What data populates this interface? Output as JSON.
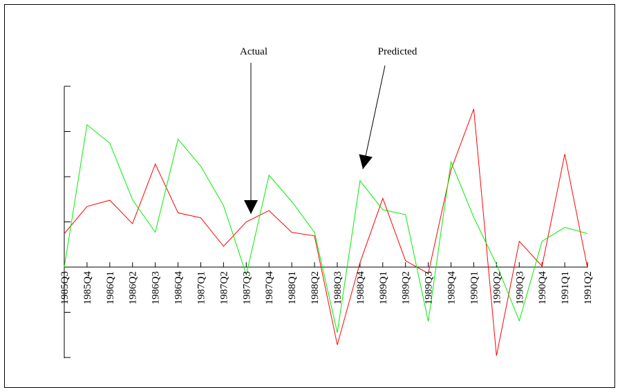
{
  "chart_data": {
    "type": "line",
    "title": "",
    "xlabel": "",
    "ylabel": "",
    "categories": [
      "1985Q3",
      "1985Q4",
      "1986Q1",
      "1986Q2",
      "1986Q3",
      "1986Q4",
      "1987Q1",
      "1987Q2",
      "1987Q3",
      "1987Q4",
      "1988Q1",
      "1988Q2",
      "1988Q3",
      "1988Q4",
      "1989Q1",
      "1989Q2",
      "1989Q3",
      "1989Q4",
      "1990Q1",
      "1990Q2",
      "1990Q3",
      "1990Q4",
      "1991Q1",
      "1991Q2"
    ],
    "ylim": [
      -2,
      4
    ],
    "yticks": [
      -2,
      -1,
      0,
      1,
      2,
      3,
      4
    ],
    "grid": false,
    "series": [
      {
        "key": "actual",
        "color": "#ff0000",
        "values": [
          0.74,
          1.34,
          1.48,
          0.96,
          2.28,
          1.2,
          1.09,
          0.46,
          1.0,
          1.25,
          0.77,
          0.69,
          -1.72,
          0.1,
          1.52,
          0.14,
          -0.14,
          2.15,
          3.5,
          -1.96,
          0.57,
          0.02,
          2.5,
          -0.02
        ]
      },
      {
        "key": "predicted",
        "color": "#00ee00",
        "values": [
          0.0,
          3.15,
          2.74,
          1.49,
          0.77,
          2.83,
          2.23,
          1.36,
          -0.17,
          2.03,
          1.45,
          0.77,
          -1.45,
          1.91,
          1.27,
          1.16,
          -1.2,
          2.33,
          1.1,
          0.06,
          -1.19,
          0.57,
          0.88,
          0.74
        ]
      }
    ],
    "annotations": [
      {
        "text": "Actual",
        "series": "actual",
        "index": 8
      },
      {
        "text": "Predicted",
        "series": "predicted",
        "index": 13
      }
    ]
  }
}
